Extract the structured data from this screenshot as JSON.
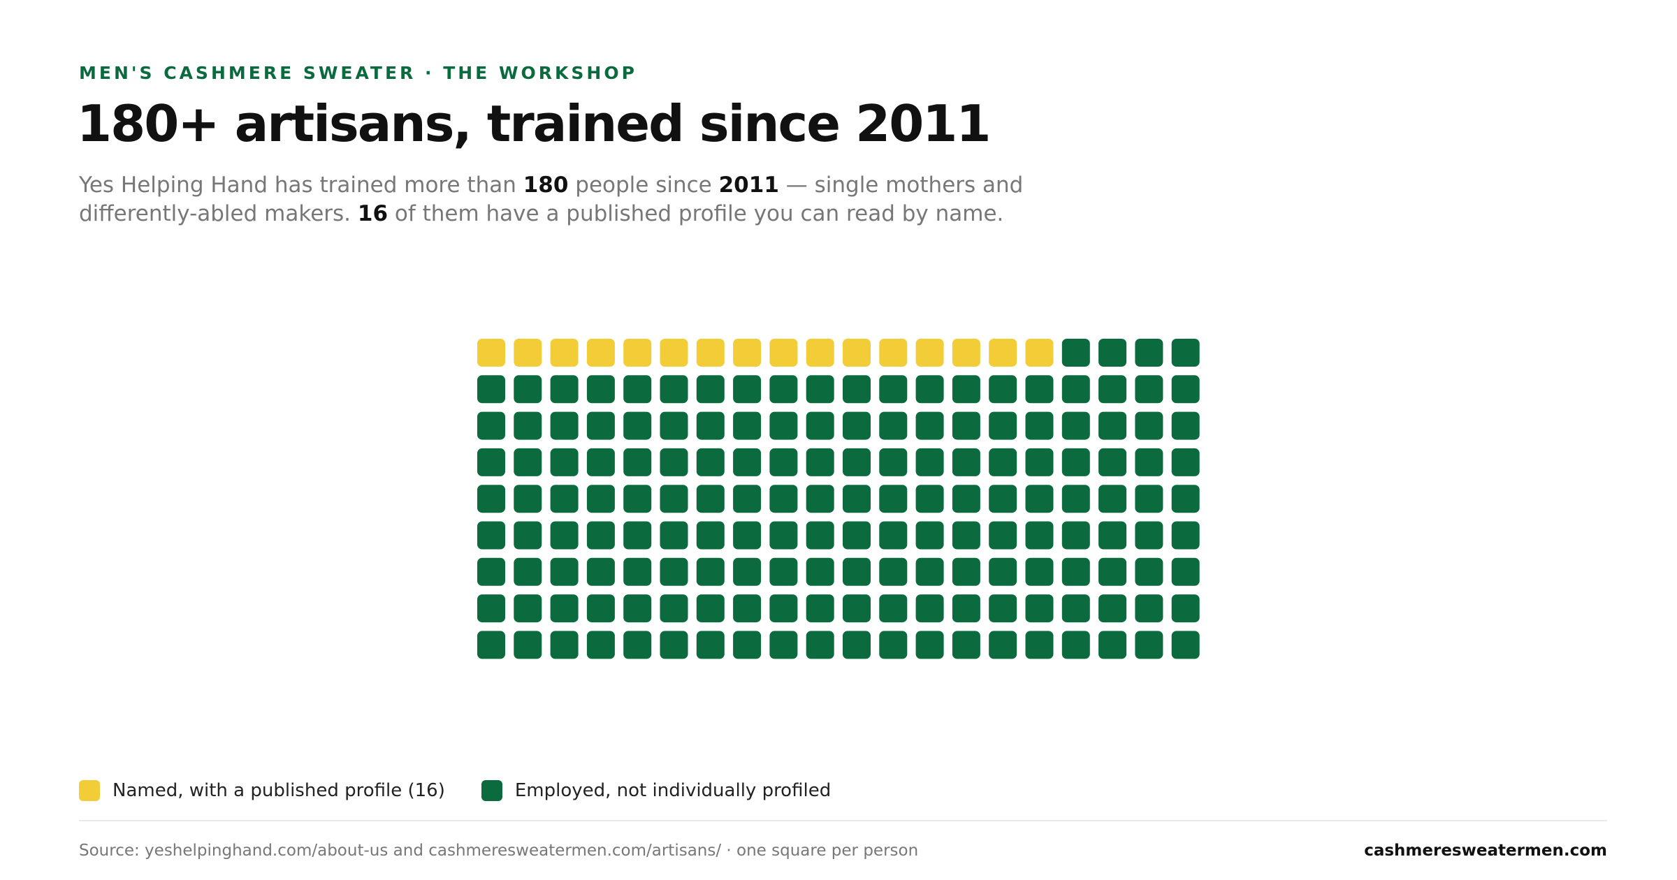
{
  "chart_data": {
    "type": "waffle",
    "kicker": "MEN'S CASHMERE SWEATER · THE WORKSHOP",
    "title": "180+ artisans, trained since 2011",
    "subtitle": [
      "Yes Helping Hand has trained more than ",
      "180",
      " people since ",
      "2011",
      " — single mothers and differently-abled makers. ",
      "16",
      " of them have a published profile you can read by name."
    ],
    "series": [
      {
        "name": "Named, with a published profile (16)",
        "color": "#f2cd37",
        "values": [
          16
        ]
      },
      {
        "name": "Employed, not individually profiled",
        "color": "#0b6b3f",
        "values": [
          164
        ]
      }
    ],
    "source": "Source: yeshelpinghand.com/about-us and cashmeresweatermen.com/artisans/ · one square per person",
    "site": "cashmeresweatermen.com"
  }
}
